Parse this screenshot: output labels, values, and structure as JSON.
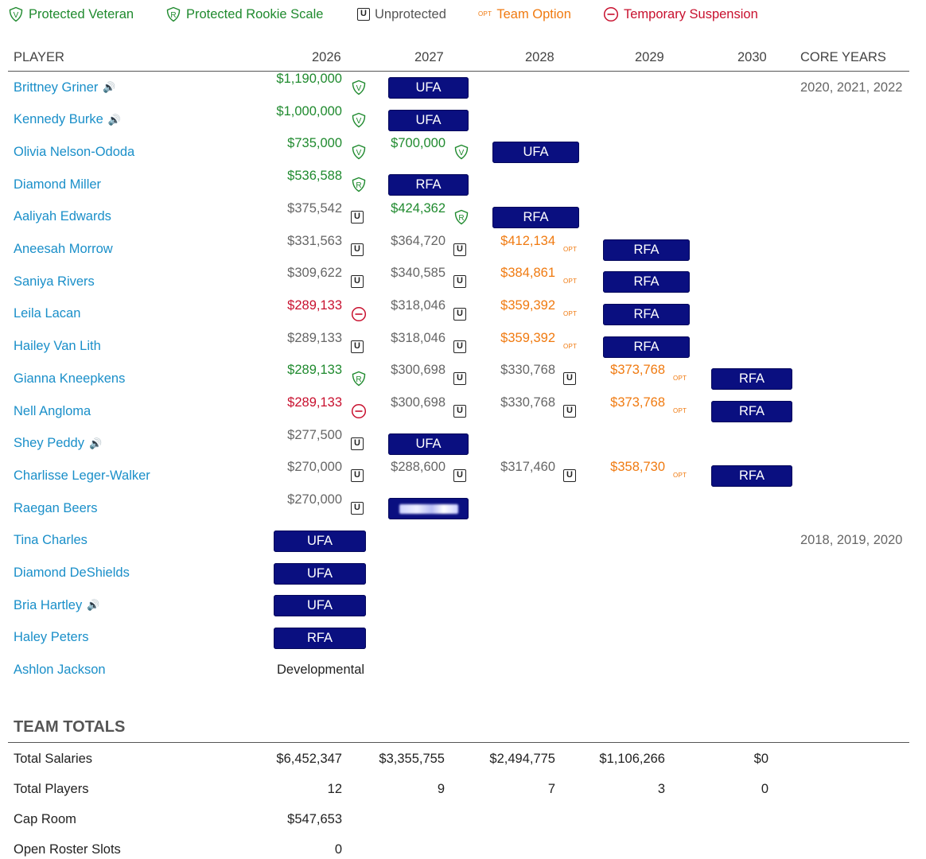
{
  "legend": {
    "veteran": "Protected Veteran",
    "rookie": "Protected Rookie Scale",
    "unprotected": "Unprotected",
    "option": "Team Option",
    "suspension": "Temporary Suspension",
    "u_letter": "U",
    "opt_letter": "OPT"
  },
  "header": {
    "player": "PLAYER",
    "y1": "2026",
    "y2": "2027",
    "y3": "2028",
    "y4": "2029",
    "y5": "2030",
    "core": "CORE YEARS"
  },
  "colors": {
    "green": "#1f8a2e",
    "gray": "#666666",
    "red": "#c8102e",
    "orange": "#f07a10",
    "badge": "#0a0f80",
    "link": "#1a8fc9"
  },
  "players": [
    {
      "name": "Brittney Griner",
      "audio": true,
      "core": "2020, 2021, 2022",
      "cells": [
        {
          "amt": "$1,190,000",
          "type": "veteran"
        },
        {
          "badge": "UFA"
        }
      ]
    },
    {
      "name": "Kennedy Burke",
      "audio": true,
      "core": "",
      "cells": [
        {
          "amt": "$1,000,000",
          "type": "veteran"
        },
        {
          "badge": "UFA"
        }
      ]
    },
    {
      "name": "Olivia Nelson-Ododa",
      "audio": false,
      "core": "",
      "cells": [
        {
          "amt": "$735,000",
          "type": "veteran"
        },
        {
          "amt": "$700,000",
          "type": "veteran"
        },
        {
          "badge": "UFA"
        }
      ]
    },
    {
      "name": "Diamond Miller",
      "audio": false,
      "core": "",
      "cells": [
        {
          "amt": "$536,588",
          "type": "rookie"
        },
        {
          "badge": "RFA"
        }
      ]
    },
    {
      "name": "Aaliyah Edwards",
      "audio": false,
      "core": "",
      "cells": [
        {
          "amt": "$375,542",
          "type": "unprotected"
        },
        {
          "amt": "$424,362",
          "type": "rookie"
        },
        {
          "badge": "RFA"
        }
      ]
    },
    {
      "name": "Aneesah Morrow",
      "audio": false,
      "core": "",
      "cells": [
        {
          "amt": "$331,563",
          "type": "unprotected"
        },
        {
          "amt": "$364,720",
          "type": "unprotected"
        },
        {
          "amt": "$412,134",
          "type": "option"
        },
        {
          "badge": "RFA"
        }
      ]
    },
    {
      "name": "Saniya Rivers",
      "audio": false,
      "core": "",
      "cells": [
        {
          "amt": "$309,622",
          "type": "unprotected"
        },
        {
          "amt": "$340,585",
          "type": "unprotected"
        },
        {
          "amt": "$384,861",
          "type": "option"
        },
        {
          "badge": "RFA"
        }
      ]
    },
    {
      "name": "Leila Lacan",
      "audio": false,
      "core": "",
      "cells": [
        {
          "amt": "$289,133",
          "type": "suspension"
        },
        {
          "amt": "$318,046",
          "type": "unprotected"
        },
        {
          "amt": "$359,392",
          "type": "option"
        },
        {
          "badge": "RFA"
        }
      ]
    },
    {
      "name": "Hailey Van Lith",
      "audio": false,
      "core": "",
      "cells": [
        {
          "amt": "$289,133",
          "type": "unprotected"
        },
        {
          "amt": "$318,046",
          "type": "unprotected"
        },
        {
          "amt": "$359,392",
          "type": "option"
        },
        {
          "badge": "RFA"
        }
      ]
    },
    {
      "name": "Gianna Kneepkens",
      "audio": false,
      "core": "",
      "cells": [
        {
          "amt": "$289,133",
          "type": "rookie"
        },
        {
          "amt": "$300,698",
          "type": "unprotected"
        },
        {
          "amt": "$330,768",
          "type": "unprotected"
        },
        {
          "amt": "$373,768",
          "type": "option"
        },
        {
          "badge": "RFA"
        }
      ]
    },
    {
      "name": "Nell Angloma",
      "audio": false,
      "core": "",
      "cells": [
        {
          "amt": "$289,133",
          "type": "suspension"
        },
        {
          "amt": "$300,698",
          "type": "unprotected"
        },
        {
          "amt": "$330,768",
          "type": "unprotected"
        },
        {
          "amt": "$373,768",
          "type": "option"
        },
        {
          "badge": "RFA"
        }
      ]
    },
    {
      "name": "Shey Peddy",
      "audio": true,
      "core": "",
      "cells": [
        {
          "amt": "$277,500",
          "type": "unprotected"
        },
        {
          "badge": "UFA"
        }
      ]
    },
    {
      "name": "Charlisse Leger-Walker",
      "audio": false,
      "core": "",
      "cells": [
        {
          "amt": "$270,000",
          "type": "unprotected"
        },
        {
          "amt": "$288,600",
          "type": "unprotected"
        },
        {
          "amt": "$317,460",
          "type": "unprotected"
        },
        {
          "amt": "$358,730",
          "type": "option"
        },
        {
          "badge": "RFA"
        }
      ]
    },
    {
      "name": "Raegan Beers",
      "audio": false,
      "core": "",
      "cells": [
        {
          "amt": "$270,000",
          "type": "unprotected"
        },
        {
          "badge": "",
          "blurred": true
        }
      ]
    },
    {
      "name": "Tina Charles",
      "audio": false,
      "core": "2018, 2019, 2020",
      "cells": [
        {
          "badge": "UFA"
        }
      ]
    },
    {
      "name": "Diamond DeShields",
      "audio": false,
      "core": "",
      "cells": [
        {
          "badge": "UFA"
        }
      ]
    },
    {
      "name": "Bria Hartley",
      "audio": true,
      "core": "",
      "cells": [
        {
          "badge": "UFA"
        }
      ]
    },
    {
      "name": "Haley Peters",
      "audio": false,
      "core": "",
      "cells": [
        {
          "badge": "RFA"
        }
      ]
    },
    {
      "name": "Ashlon Jackson",
      "audio": false,
      "core": "",
      "cells": [
        {
          "text": "Developmental"
        }
      ]
    }
  ],
  "totals": {
    "title": "TEAM TOTALS",
    "rows": [
      {
        "label": "Total Salaries",
        "values": [
          "$6,452,347",
          "$3,355,755",
          "$2,494,775",
          "$1,106,266",
          "$0"
        ]
      },
      {
        "label": "Total Players",
        "values": [
          "12",
          "9",
          "7",
          "3",
          "0"
        ]
      },
      {
        "label": "Cap Room",
        "values": [
          "$547,653"
        ]
      },
      {
        "label": "Open Roster Slots",
        "values": [
          "0"
        ]
      }
    ]
  }
}
